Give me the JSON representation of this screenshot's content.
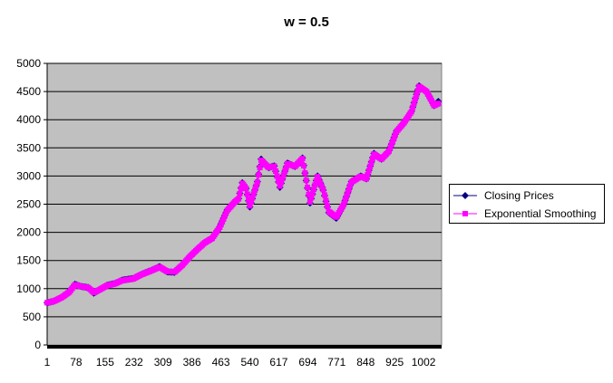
{
  "chart_data": {
    "type": "line",
    "title": "w = 0.5",
    "xlabel": "",
    "ylabel": "",
    "ylim": [
      0,
      5000
    ],
    "xlim": [
      1,
      1050
    ],
    "yticks": [
      0,
      500,
      1000,
      1500,
      2000,
      2500,
      3000,
      3500,
      4000,
      4500,
      5000
    ],
    "xtick_labels": [
      "1",
      "78",
      "155",
      "232",
      "309",
      "386",
      "463",
      "540",
      "617",
      "694",
      "771",
      "848",
      "925",
      "1002"
    ],
    "grid": "horizontal",
    "plot_background": "#c0c0c0",
    "legend_position": "right",
    "series": [
      {
        "name": "Closing Prices",
        "color": "#000080",
        "marker": "diamond",
        "points": [
          [
            1,
            750
          ],
          [
            20,
            780
          ],
          [
            40,
            850
          ],
          [
            60,
            950
          ],
          [
            75,
            1080
          ],
          [
            90,
            1040
          ],
          [
            110,
            1020
          ],
          [
            125,
            920
          ],
          [
            140,
            980
          ],
          [
            160,
            1060
          ],
          [
            180,
            1090
          ],
          [
            200,
            1150
          ],
          [
            230,
            1180
          ],
          [
            250,
            1250
          ],
          [
            280,
            1330
          ],
          [
            300,
            1390
          ],
          [
            320,
            1300
          ],
          [
            340,
            1290
          ],
          [
            360,
            1420
          ],
          [
            380,
            1570
          ],
          [
            400,
            1700
          ],
          [
            420,
            1820
          ],
          [
            440,
            1900
          ],
          [
            460,
            2100
          ],
          [
            480,
            2400
          ],
          [
            500,
            2550
          ],
          [
            510,
            2600
          ],
          [
            520,
            2880
          ],
          [
            530,
            2780
          ],
          [
            540,
            2450
          ],
          [
            560,
            2900
          ],
          [
            570,
            3300
          ],
          [
            590,
            3150
          ],
          [
            605,
            3180
          ],
          [
            620,
            2800
          ],
          [
            640,
            3230
          ],
          [
            660,
            3170
          ],
          [
            680,
            3320
          ],
          [
            700,
            2520
          ],
          [
            720,
            3000
          ],
          [
            735,
            2750
          ],
          [
            750,
            2350
          ],
          [
            770,
            2250
          ],
          [
            790,
            2500
          ],
          [
            810,
            2900
          ],
          [
            835,
            3000
          ],
          [
            850,
            2950
          ],
          [
            870,
            3400
          ],
          [
            890,
            3300
          ],
          [
            910,
            3450
          ],
          [
            930,
            3800
          ],
          [
            950,
            3950
          ],
          [
            970,
            4150
          ],
          [
            990,
            4600
          ],
          [
            1010,
            4500
          ],
          [
            1030,
            4250
          ],
          [
            1045,
            4350
          ]
        ]
      },
      {
        "name": "Exponential Smoothing",
        "color": "#ff00ff",
        "marker": "square",
        "points": [
          [
            1,
            750
          ],
          [
            20,
            780
          ],
          [
            40,
            845
          ],
          [
            60,
            940
          ],
          [
            75,
            1070
          ],
          [
            90,
            1040
          ],
          [
            110,
            1020
          ],
          [
            125,
            930
          ],
          [
            140,
            980
          ],
          [
            160,
            1055
          ],
          [
            180,
            1085
          ],
          [
            200,
            1145
          ],
          [
            230,
            1175
          ],
          [
            250,
            1245
          ],
          [
            280,
            1325
          ],
          [
            300,
            1385
          ],
          [
            320,
            1305
          ],
          [
            340,
            1295
          ],
          [
            360,
            1415
          ],
          [
            380,
            1565
          ],
          [
            400,
            1695
          ],
          [
            420,
            1815
          ],
          [
            440,
            1895
          ],
          [
            460,
            2090
          ],
          [
            480,
            2390
          ],
          [
            500,
            2540
          ],
          [
            510,
            2595
          ],
          [
            520,
            2870
          ],
          [
            530,
            2780
          ],
          [
            540,
            2470
          ],
          [
            560,
            2890
          ],
          [
            570,
            3280
          ],
          [
            590,
            3150
          ],
          [
            605,
            3175
          ],
          [
            620,
            2820
          ],
          [
            640,
            3220
          ],
          [
            660,
            3170
          ],
          [
            680,
            3310
          ],
          [
            700,
            2540
          ],
          [
            720,
            2990
          ],
          [
            735,
            2760
          ],
          [
            750,
            2370
          ],
          [
            770,
            2270
          ],
          [
            790,
            2500
          ],
          [
            810,
            2890
          ],
          [
            835,
            2995
          ],
          [
            850,
            2950
          ],
          [
            870,
            3390
          ],
          [
            890,
            3300
          ],
          [
            910,
            3440
          ],
          [
            930,
            3790
          ],
          [
            950,
            3945
          ],
          [
            970,
            4145
          ],
          [
            990,
            4590
          ],
          [
            1010,
            4500
          ],
          [
            1030,
            4250
          ],
          [
            1045,
            4300
          ]
        ]
      }
    ]
  }
}
